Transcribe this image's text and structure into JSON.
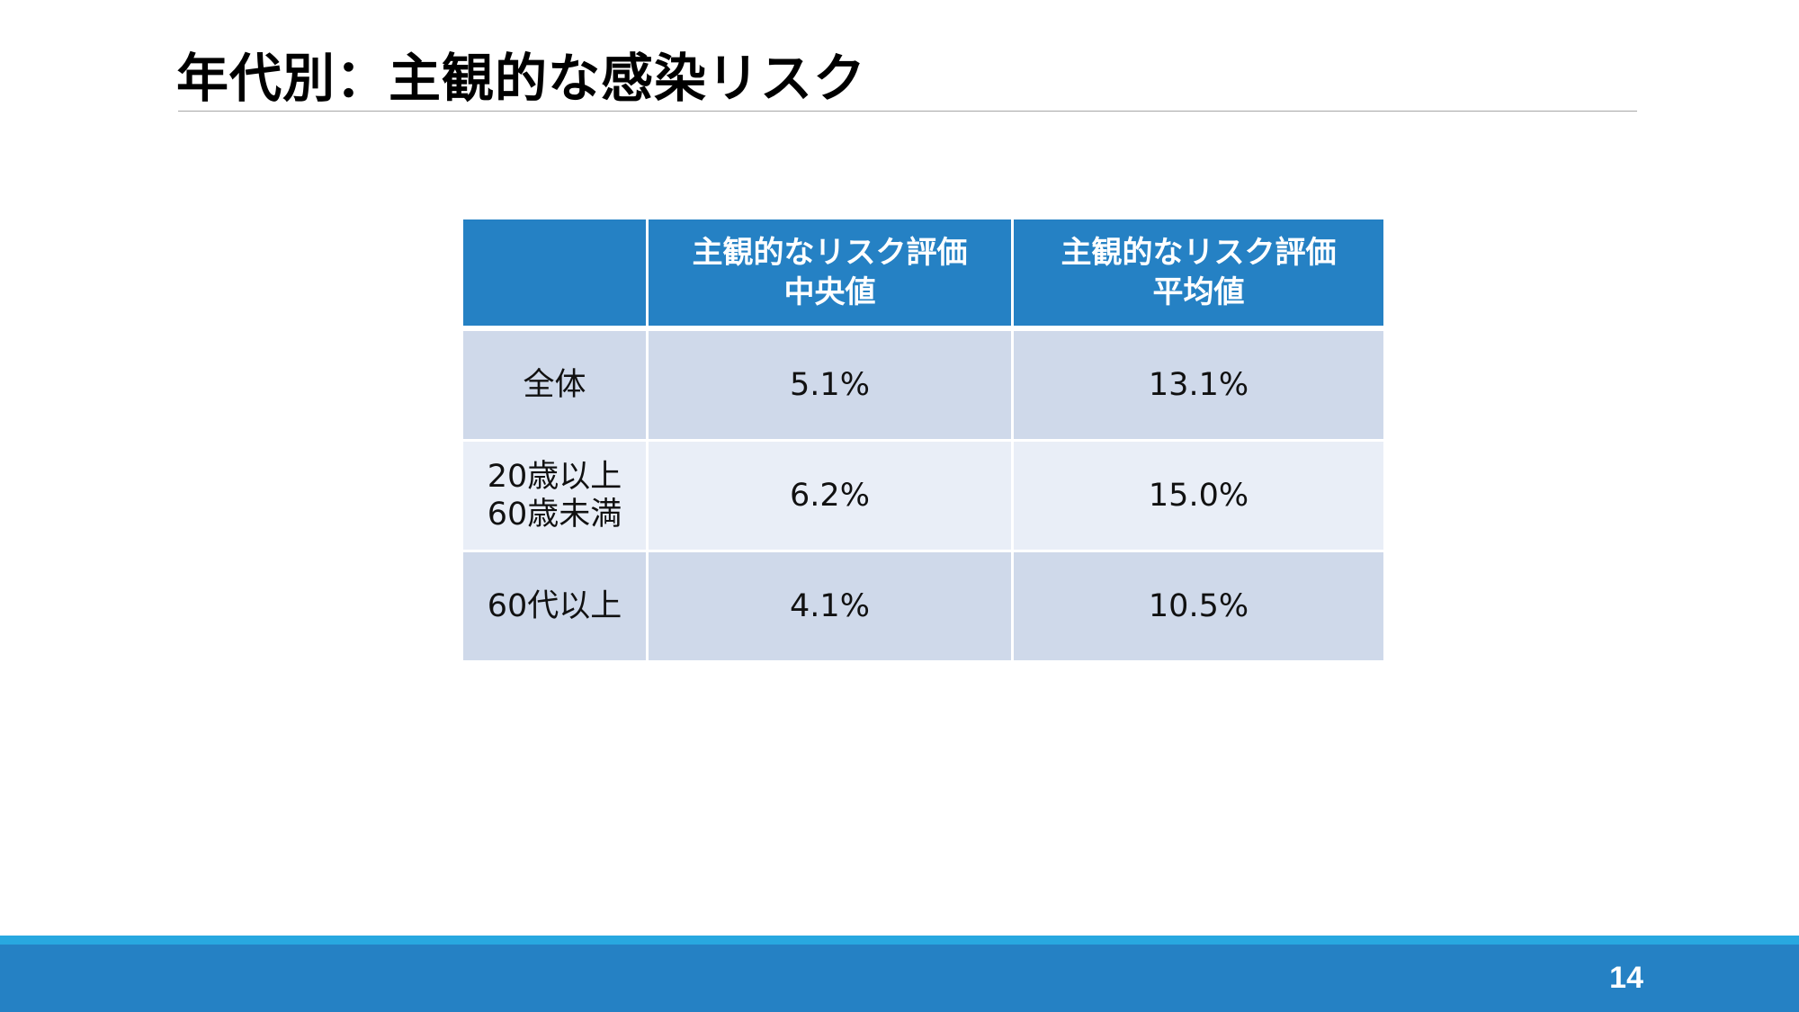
{
  "slide": {
    "title": "年代別：主観的な感染リスク",
    "page_number": "14"
  },
  "table": {
    "headers": [
      {
        "lines": [
          ""
        ]
      },
      {
        "lines": [
          "主観的なリスク評価",
          "中央値"
        ]
      },
      {
        "lines": [
          "主観的なリスク評価",
          "平均値"
        ]
      }
    ],
    "rows": [
      {
        "label_lines": [
          "全体"
        ],
        "median": "5.1%",
        "mean": "13.1%"
      },
      {
        "label_lines": [
          "20歳以上",
          "60歳未満"
        ],
        "median": "6.2%",
        "mean": "15.0%"
      },
      {
        "label_lines": [
          "60代以上"
        ],
        "median": "4.1%",
        "mean": "10.5%"
      }
    ]
  },
  "colors": {
    "header_fill": "#2581c4",
    "row_fill_dark": "#cfd9ea",
    "row_fill_light": "#e9eef7",
    "footer_bar": "#2581c4",
    "footer_stripe": "#28a8e0"
  }
}
